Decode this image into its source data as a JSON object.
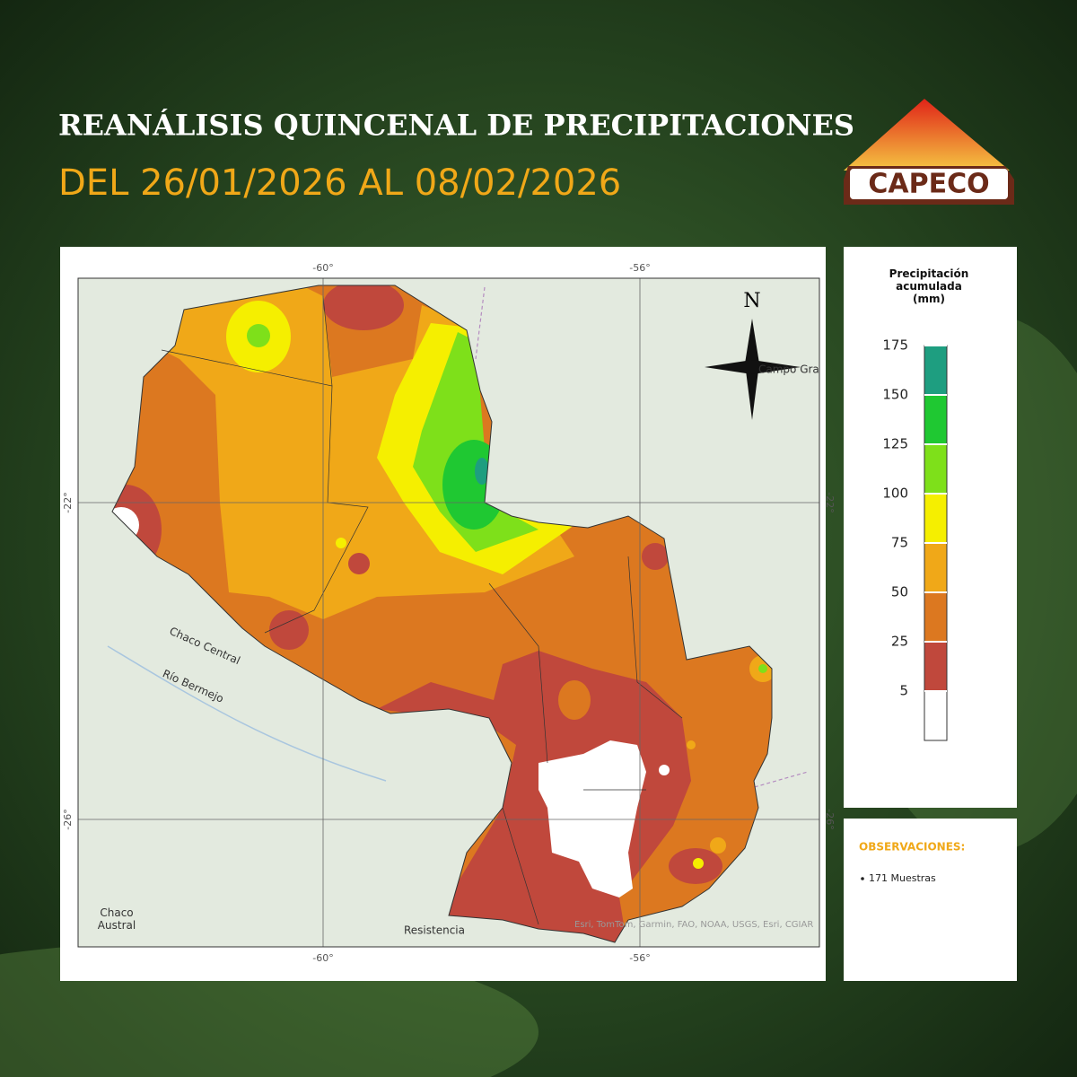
{
  "header": {
    "title": "REANÁLISIS QUINCENAL DE PRECIPITACIONES",
    "subtitle": "DEL 26/01/2026 AL 08/02/2026",
    "logo": "CAPECO"
  },
  "map": {
    "lon_labels": [
      "-60°",
      "-56°"
    ],
    "lat_labels": [
      "-22°",
      "-26°"
    ],
    "north": "N",
    "places": [
      "Chaco Central",
      "Río Bermejo",
      "Chaco Austral",
      "Resistencia",
      "Campo Grande"
    ],
    "attribution": "Esri, TomTom, Garmin, FAO, NOAA, USGS, Esri, CGIAR"
  },
  "legend": {
    "title": "Precipitación acumulada (mm)",
    "breaks": [
      175,
      150,
      125,
      100,
      75,
      50,
      25,
      5
    ],
    "colors": [
      "#1e9e80",
      "#1fc832",
      "#7ee01a",
      "#f5ef00",
      "#f0a818",
      "#dc7820",
      "#c0483c",
      "#ffffff"
    ]
  },
  "observations": {
    "title": "OBSERVACIONES:",
    "items": [
      "171 Muestras"
    ]
  }
}
